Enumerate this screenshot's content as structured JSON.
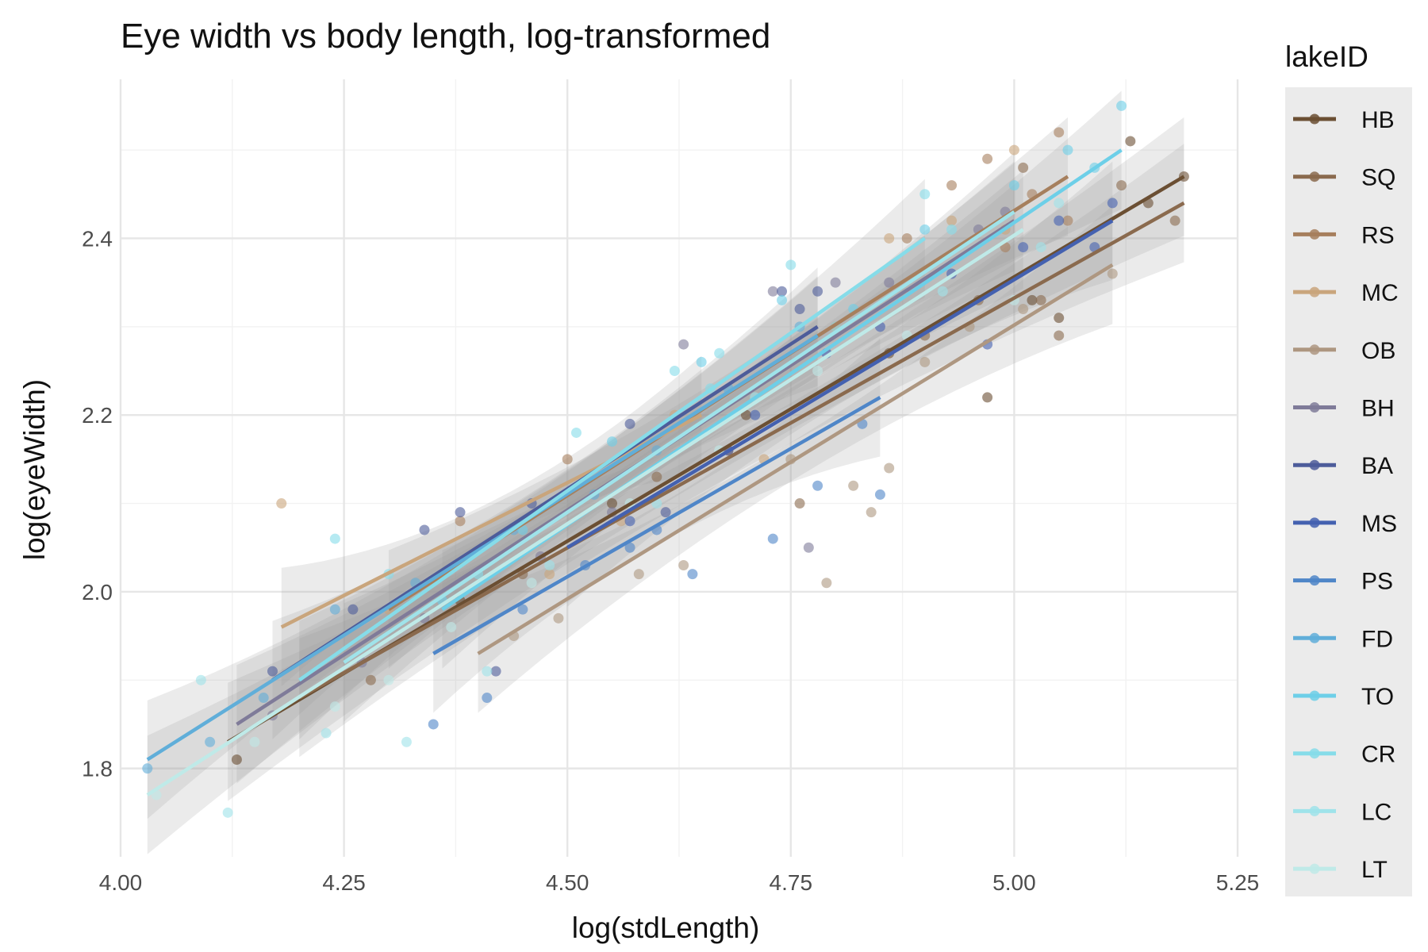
{
  "chart_data": {
    "type": "scatter",
    "title": "Eye width vs body length, log-transformed",
    "xlabel": "log(stdLength)",
    "ylabel": "log(eyeWidth)",
    "xlim": [
      4.0,
      5.25
    ],
    "ylim": [
      1.7,
      2.58
    ],
    "xticks": [
      4.0,
      4.25,
      4.5,
      4.75,
      5.0,
      5.25
    ],
    "xtick_labels": [
      "4.00",
      "4.25",
      "4.50",
      "4.75",
      "5.00",
      "5.25"
    ],
    "yticks": [
      1.8,
      2.0,
      2.2,
      2.4
    ],
    "ytick_labels": [
      "1.8",
      "2.0",
      "2.2",
      "2.4"
    ],
    "grid": true,
    "legend_title": "lakeID",
    "legend_position": "right",
    "smooth": "linear fit with shaded confidence band per group",
    "series": [
      {
        "name": "HB",
        "color": "#6b4f33",
        "fit": {
          "x": [
            4.12,
            5.19
          ],
          "y": [
            1.83,
            2.47
          ]
        },
        "points": [
          [
            4.13,
            1.81
          ],
          [
            4.38,
            1.99
          ],
          [
            4.55,
            2.1
          ],
          [
            4.7,
            2.2
          ],
          [
            4.86,
            2.27
          ],
          [
            4.97,
            2.22
          ],
          [
            5.05,
            2.31
          ],
          [
            5.13,
            2.51
          ],
          [
            5.15,
            2.44
          ],
          [
            5.19,
            2.47
          ],
          [
            5.02,
            2.33
          ]
        ]
      },
      {
        "name": "SQ",
        "color": "#8a6a4e",
        "fit": {
          "x": [
            4.2,
            5.19
          ],
          "y": [
            1.88,
            2.44
          ]
        },
        "points": [
          [
            4.28,
            1.9
          ],
          [
            4.45,
            2.02
          ],
          [
            4.6,
            2.13
          ],
          [
            4.76,
            2.1
          ],
          [
            4.9,
            2.29
          ],
          [
            4.96,
            2.33
          ],
          [
            5.03,
            2.33
          ],
          [
            5.05,
            2.29
          ],
          [
            5.18,
            2.42
          ],
          [
            5.12,
            2.46
          ],
          [
            5.01,
            2.48
          ]
        ]
      },
      {
        "name": "RS",
        "color": "#a67f5d",
        "fit": {
          "x": [
            4.3,
            5.06
          ],
          "y": [
            1.98,
            2.47
          ]
        },
        "points": [
          [
            4.38,
            2.08
          ],
          [
            4.5,
            2.15
          ],
          [
            4.68,
            2.16
          ],
          [
            4.8,
            2.3
          ],
          [
            4.88,
            2.4
          ],
          [
            4.93,
            2.46
          ],
          [
            4.97,
            2.49
          ],
          [
            5.05,
            2.52
          ],
          [
            5.02,
            2.45
          ],
          [
            5.06,
            2.42
          ],
          [
            4.99,
            2.39
          ]
        ]
      },
      {
        "name": "MC",
        "color": "#c9a57c",
        "fit": {
          "x": [
            4.18,
            4.65
          ],
          "y": [
            1.96,
            2.2
          ]
        },
        "points": [
          [
            4.18,
            2.1
          ],
          [
            4.3,
            1.98
          ],
          [
            4.48,
            2.02
          ],
          [
            4.56,
            2.08
          ],
          [
            4.62,
            2.2
          ],
          [
            4.72,
            2.15
          ],
          [
            4.86,
            2.4
          ],
          [
            4.93,
            2.42
          ],
          [
            4.99,
            2.41
          ],
          [
            5.0,
            2.5
          ]
        ]
      },
      {
        "name": "OB",
        "color": "#ae9781",
        "fit": {
          "x": [
            4.4,
            5.11
          ],
          "y": [
            1.93,
            2.37
          ]
        },
        "points": [
          [
            4.44,
            1.95
          ],
          [
            4.49,
            1.97
          ],
          [
            4.58,
            2.02
          ],
          [
            4.63,
            2.03
          ],
          [
            4.79,
            2.01
          ],
          [
            4.82,
            2.12
          ],
          [
            4.84,
            2.09
          ],
          [
            4.86,
            2.14
          ],
          [
            4.9,
            2.26
          ],
          [
            4.95,
            2.3
          ],
          [
            5.01,
            2.32
          ],
          [
            5.11,
            2.36
          ],
          [
            4.75,
            2.15
          ]
        ]
      },
      {
        "name": "BH",
        "color": "#7f7b99",
        "fit": {
          "x": [
            4.13,
            5.0
          ],
          "y": [
            1.85,
            2.42
          ]
        },
        "points": [
          [
            4.17,
            1.86
          ],
          [
            4.27,
            1.92
          ],
          [
            4.34,
            1.97
          ],
          [
            4.47,
            2.04
          ],
          [
            4.55,
            2.09
          ],
          [
            4.63,
            2.28
          ],
          [
            4.73,
            2.34
          ],
          [
            4.8,
            2.35
          ],
          [
            4.86,
            2.35
          ],
          [
            4.96,
            2.41
          ],
          [
            4.99,
            2.43
          ],
          [
            4.77,
            2.05
          ]
        ]
      },
      {
        "name": "BA",
        "color": "#4d5c9a",
        "fit": {
          "x": [
            4.17,
            4.78
          ],
          "y": [
            1.9,
            2.3
          ]
        },
        "points": [
          [
            4.17,
            1.91
          ],
          [
            4.26,
            1.98
          ],
          [
            4.34,
            2.07
          ],
          [
            4.38,
            2.09
          ],
          [
            4.46,
            2.1
          ],
          [
            4.57,
            2.19
          ],
          [
            4.68,
            2.16
          ],
          [
            4.74,
            2.34
          ],
          [
            4.78,
            2.34
          ],
          [
            4.76,
            2.32
          ],
          [
            4.42,
            1.91
          ],
          [
            4.61,
            2.09
          ]
        ]
      },
      {
        "name": "MS",
        "color": "#4461b0",
        "fit": {
          "x": [
            4.5,
            5.11
          ],
          "y": [
            2.05,
            2.42
          ]
        },
        "points": [
          [
            4.57,
            2.08
          ],
          [
            4.71,
            2.2
          ],
          [
            4.79,
            2.27
          ],
          [
            4.85,
            2.3
          ],
          [
            4.93,
            2.36
          ],
          [
            5.01,
            2.39
          ],
          [
            5.09,
            2.39
          ],
          [
            5.11,
            2.44
          ],
          [
            5.05,
            2.42
          ],
          [
            4.97,
            2.28
          ]
        ]
      },
      {
        "name": "PS",
        "color": "#4f86c8",
        "fit": {
          "x": [
            4.35,
            4.85
          ],
          "y": [
            1.93,
            2.22
          ]
        },
        "points": [
          [
            4.35,
            1.85
          ],
          [
            4.41,
            1.88
          ],
          [
            4.45,
            1.98
          ],
          [
            4.52,
            2.03
          ],
          [
            4.57,
            2.05
          ],
          [
            4.64,
            2.02
          ],
          [
            4.73,
            2.06
          ],
          [
            4.78,
            2.12
          ],
          [
            4.83,
            2.19
          ],
          [
            4.85,
            2.11
          ],
          [
            4.6,
            2.07
          ]
        ]
      },
      {
        "name": "FD",
        "color": "#60aed9",
        "fit": {
          "x": [
            4.03,
            4.78
          ],
          "y": [
            1.81,
            2.29
          ]
        },
        "points": [
          [
            4.03,
            1.8
          ],
          [
            4.1,
            1.83
          ],
          [
            4.16,
            1.88
          ],
          [
            4.24,
            1.98
          ],
          [
            4.33,
            2.01
          ],
          [
            4.44,
            2.07
          ],
          [
            4.53,
            2.11
          ],
          [
            4.6,
            2.16
          ],
          [
            4.68,
            2.23
          ],
          [
            4.76,
            2.3
          ]
        ]
      },
      {
        "name": "TO",
        "color": "#6dcfe8",
        "fit": {
          "x": [
            4.36,
            5.12
          ],
          "y": [
            1.98,
            2.5
          ]
        },
        "points": [
          [
            4.36,
            1.99
          ],
          [
            4.45,
            2.07
          ],
          [
            4.55,
            2.17
          ],
          [
            4.65,
            2.26
          ],
          [
            4.74,
            2.33
          ],
          [
            4.82,
            2.32
          ],
          [
            4.9,
            2.41
          ],
          [
            5.0,
            2.46
          ],
          [
            5.06,
            2.5
          ],
          [
            5.12,
            2.55
          ],
          [
            5.09,
            2.48
          ]
        ]
      },
      {
        "name": "CR",
        "color": "#86dce9",
        "fit": {
          "x": [
            4.2,
            4.9
          ],
          "y": [
            1.9,
            2.4
          ]
        },
        "points": [
          [
            4.24,
            2.06
          ],
          [
            4.3,
            2.02
          ],
          [
            4.4,
            2.02
          ],
          [
            4.51,
            2.18
          ],
          [
            4.62,
            2.25
          ],
          [
            4.67,
            2.27
          ],
          [
            4.75,
            2.37
          ],
          [
            4.9,
            2.45
          ],
          [
            4.93,
            2.41
          ],
          [
            4.66,
            2.23
          ]
        ]
      },
      {
        "name": "LC",
        "color": "#9fe3ea",
        "fit": {
          "x": [
            4.25,
            5.0
          ],
          "y": [
            1.92,
            2.43
          ]
        },
        "points": [
          [
            4.09,
            1.9
          ],
          [
            4.12,
            1.75
          ],
          [
            4.23,
            1.84
          ],
          [
            4.32,
            1.83
          ],
          [
            4.41,
            1.91
          ],
          [
            4.48,
            2.03
          ],
          [
            4.6,
            2.1
          ],
          [
            4.71,
            2.22
          ],
          [
            4.8,
            2.3
          ],
          [
            4.92,
            2.34
          ],
          [
            5.03,
            2.39
          ],
          [
            5.05,
            2.44
          ]
        ]
      },
      {
        "name": "LT",
        "color": "#bfeae8",
        "fit": {
          "x": [
            4.03,
            5.01
          ],
          "y": [
            1.77,
            2.41
          ]
        },
        "points": [
          [
            4.04,
            1.77
          ],
          [
            4.15,
            1.83
          ],
          [
            4.24,
            1.87
          ],
          [
            4.37,
            1.96
          ],
          [
            4.46,
            2.01
          ],
          [
            4.57,
            2.1
          ],
          [
            4.67,
            2.16
          ],
          [
            4.78,
            2.25
          ],
          [
            4.88,
            2.29
          ],
          [
            5.0,
            2.33
          ],
          [
            4.3,
            1.9
          ]
        ]
      }
    ]
  }
}
